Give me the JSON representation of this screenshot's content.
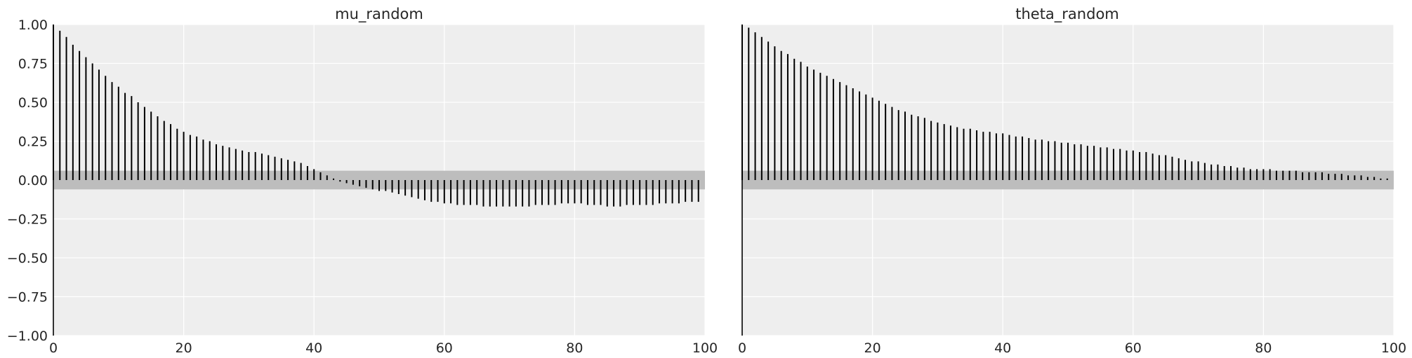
{
  "chart_data": [
    {
      "type": "bar",
      "title": "mu_random",
      "x_range": [
        0,
        100
      ],
      "ylim": [
        -1.0,
        1.0
      ],
      "xticks": [
        0,
        20,
        40,
        60,
        80,
        100
      ],
      "yticks": [
        1.0,
        0.75,
        0.5,
        0.25,
        0.0,
        -0.25,
        -0.5,
        -0.75,
        -1.0
      ],
      "ytick_labels": [
        "1.00",
        "0.75",
        "0.50",
        "0.25",
        "0.00",
        "−0.25",
        "−0.50",
        "−0.75",
        "−1.00"
      ],
      "grid": true,
      "confidence_band": [
        -0.06,
        0.06
      ],
      "x": [
        0,
        1,
        2,
        3,
        4,
        5,
        6,
        7,
        8,
        9,
        10,
        11,
        12,
        13,
        14,
        15,
        16,
        17,
        18,
        19,
        20,
        21,
        22,
        23,
        24,
        25,
        26,
        27,
        28,
        29,
        30,
        31,
        32,
        33,
        34,
        35,
        36,
        37,
        38,
        39,
        40,
        41,
        42,
        43,
        44,
        45,
        46,
        47,
        48,
        49,
        50,
        51,
        52,
        53,
        54,
        55,
        56,
        57,
        58,
        59,
        60,
        61,
        62,
        63,
        64,
        65,
        66,
        67,
        68,
        69,
        70,
        71,
        72,
        73,
        74,
        75,
        76,
        77,
        78,
        79,
        80,
        81,
        82,
        83,
        84,
        85,
        86,
        87,
        88,
        89,
        90,
        91,
        92,
        93,
        94,
        95,
        96,
        97,
        98,
        99
      ],
      "values": [
        1.0,
        0.96,
        0.92,
        0.87,
        0.83,
        0.79,
        0.75,
        0.71,
        0.67,
        0.63,
        0.6,
        0.56,
        0.54,
        0.5,
        0.47,
        0.44,
        0.41,
        0.38,
        0.36,
        0.33,
        0.31,
        0.29,
        0.28,
        0.26,
        0.25,
        0.23,
        0.22,
        0.21,
        0.2,
        0.19,
        0.18,
        0.18,
        0.17,
        0.16,
        0.15,
        0.14,
        0.13,
        0.12,
        0.11,
        0.09,
        0.07,
        0.05,
        0.03,
        0.01,
        -0.01,
        -0.02,
        -0.03,
        -0.04,
        -0.05,
        -0.06,
        -0.07,
        -0.07,
        -0.08,
        -0.09,
        -0.1,
        -0.11,
        -0.12,
        -0.13,
        -0.14,
        -0.14,
        -0.15,
        -0.15,
        -0.16,
        -0.16,
        -0.16,
        -0.16,
        -0.17,
        -0.17,
        -0.17,
        -0.17,
        -0.17,
        -0.17,
        -0.17,
        -0.17,
        -0.16,
        -0.16,
        -0.16,
        -0.16,
        -0.15,
        -0.15,
        -0.15,
        -0.15,
        -0.16,
        -0.16,
        -0.16,
        -0.17,
        -0.17,
        -0.17,
        -0.16,
        -0.16,
        -0.16,
        -0.16,
        -0.16,
        -0.15,
        -0.15,
        -0.15,
        -0.15,
        -0.14,
        -0.14,
        -0.14
      ]
    },
    {
      "type": "bar",
      "title": "theta_random",
      "x_range": [
        0,
        100
      ],
      "ylim": [
        -1.0,
        1.0
      ],
      "xticks": [
        0,
        20,
        40,
        60,
        80,
        100
      ],
      "grid": true,
      "confidence_band": [
        -0.06,
        0.06
      ],
      "x": [
        0,
        1,
        2,
        3,
        4,
        5,
        6,
        7,
        8,
        9,
        10,
        11,
        12,
        13,
        14,
        15,
        16,
        17,
        18,
        19,
        20,
        21,
        22,
        23,
        24,
        25,
        26,
        27,
        28,
        29,
        30,
        31,
        32,
        33,
        34,
        35,
        36,
        37,
        38,
        39,
        40,
        41,
        42,
        43,
        44,
        45,
        46,
        47,
        48,
        49,
        50,
        51,
        52,
        53,
        54,
        55,
        56,
        57,
        58,
        59,
        60,
        61,
        62,
        63,
        64,
        65,
        66,
        67,
        68,
        69,
        70,
        71,
        72,
        73,
        74,
        75,
        76,
        77,
        78,
        79,
        80,
        81,
        82,
        83,
        84,
        85,
        86,
        87,
        88,
        89,
        90,
        91,
        92,
        93,
        94,
        95,
        96,
        97,
        98,
        99
      ],
      "values": [
        1.0,
        0.98,
        0.95,
        0.92,
        0.89,
        0.86,
        0.83,
        0.81,
        0.78,
        0.76,
        0.73,
        0.71,
        0.69,
        0.67,
        0.65,
        0.63,
        0.61,
        0.59,
        0.57,
        0.55,
        0.53,
        0.51,
        0.49,
        0.47,
        0.45,
        0.44,
        0.42,
        0.41,
        0.4,
        0.38,
        0.37,
        0.36,
        0.35,
        0.34,
        0.33,
        0.33,
        0.32,
        0.31,
        0.31,
        0.3,
        0.3,
        0.29,
        0.28,
        0.28,
        0.27,
        0.26,
        0.26,
        0.25,
        0.25,
        0.24,
        0.24,
        0.23,
        0.23,
        0.22,
        0.22,
        0.21,
        0.21,
        0.2,
        0.2,
        0.19,
        0.19,
        0.18,
        0.18,
        0.17,
        0.16,
        0.16,
        0.15,
        0.14,
        0.13,
        0.12,
        0.12,
        0.11,
        0.1,
        0.1,
        0.09,
        0.09,
        0.08,
        0.08,
        0.07,
        0.07,
        0.07,
        0.07,
        0.06,
        0.06,
        0.06,
        0.06,
        0.05,
        0.05,
        0.05,
        0.05,
        0.04,
        0.04,
        0.04,
        0.03,
        0.03,
        0.03,
        0.02,
        0.02,
        0.01,
        0.01
      ]
    }
  ]
}
